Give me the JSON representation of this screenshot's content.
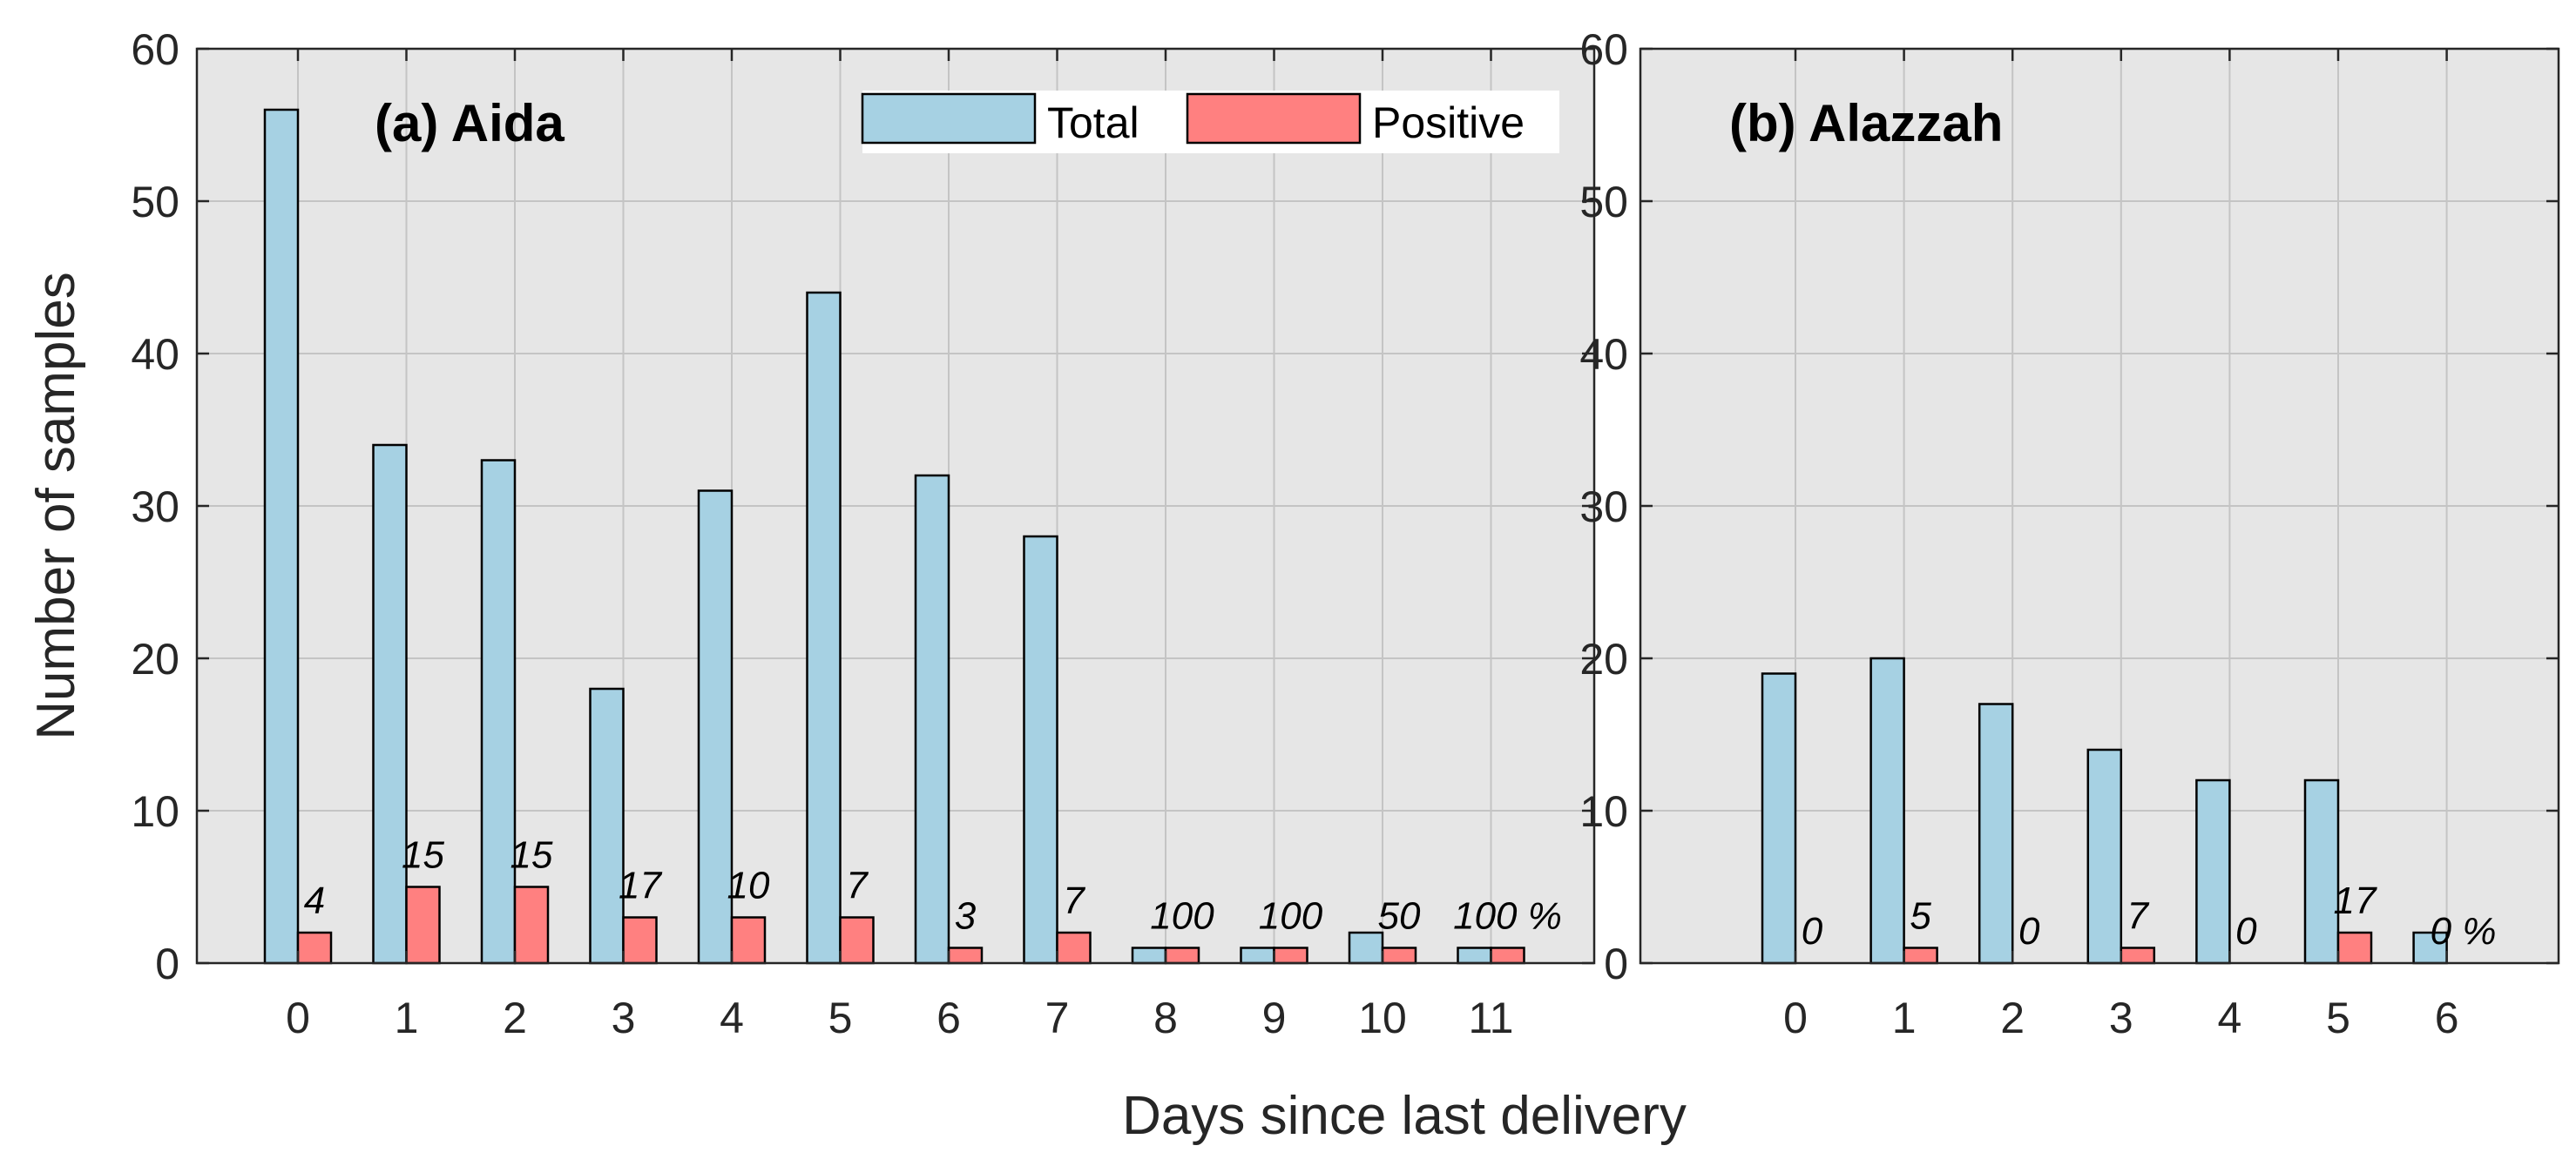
{
  "figure": {
    "ylabel": "Number of samples",
    "xlabel": "Days since last delivery"
  },
  "legend": {
    "total": "Total",
    "positive": "Positive",
    "total_color": "#a6d1e3",
    "positive_color": "#ff8080"
  },
  "chart_data": [
    {
      "type": "bar",
      "title": "(a) Aida",
      "categories": [
        "0",
        "1",
        "2",
        "3",
        "4",
        "5",
        "6",
        "7",
        "8",
        "9",
        "10",
        "11"
      ],
      "series": [
        {
          "name": "Total",
          "values": [
            56,
            34,
            33,
            18,
            31,
            44,
            32,
            28,
            1,
            1,
            2,
            1
          ]
        },
        {
          "name": "Positive",
          "values": [
            2,
            5,
            5,
            3,
            3,
            3,
            1,
            2,
            1,
            1,
            1,
            1
          ]
        }
      ],
      "percent_labels": [
        "4",
        "15",
        "15",
        "17",
        "10",
        "7",
        "3",
        "7",
        "100",
        "100",
        "50",
        "100 %"
      ],
      "yticks": [
        "0",
        "10",
        "20",
        "30",
        "40",
        "50",
        "60"
      ],
      "ylim": [
        0,
        60
      ],
      "grid": true,
      "legend_position": "top-right",
      "xlabel": "Days since last delivery",
      "ylabel": "Number of samples"
    },
    {
      "type": "bar",
      "title": "(b) Alazzah",
      "categories": [
        "0",
        "1",
        "2",
        "3",
        "4",
        "5",
        "6"
      ],
      "series": [
        {
          "name": "Total",
          "values": [
            19,
            20,
            17,
            14,
            12,
            12,
            2
          ]
        },
        {
          "name": "Positive",
          "values": [
            0,
            1,
            0,
            1,
            0,
            2,
            0
          ]
        }
      ],
      "percent_labels": [
        "0",
        "5",
        "0",
        "7",
        "0",
        "17",
        "0 %"
      ],
      "yticks": [
        "0",
        "10",
        "20",
        "30",
        "40",
        "50",
        "60"
      ],
      "ylim": [
        0,
        60
      ],
      "grid": true,
      "xlabel": "Days since last delivery",
      "ylabel": ""
    }
  ]
}
